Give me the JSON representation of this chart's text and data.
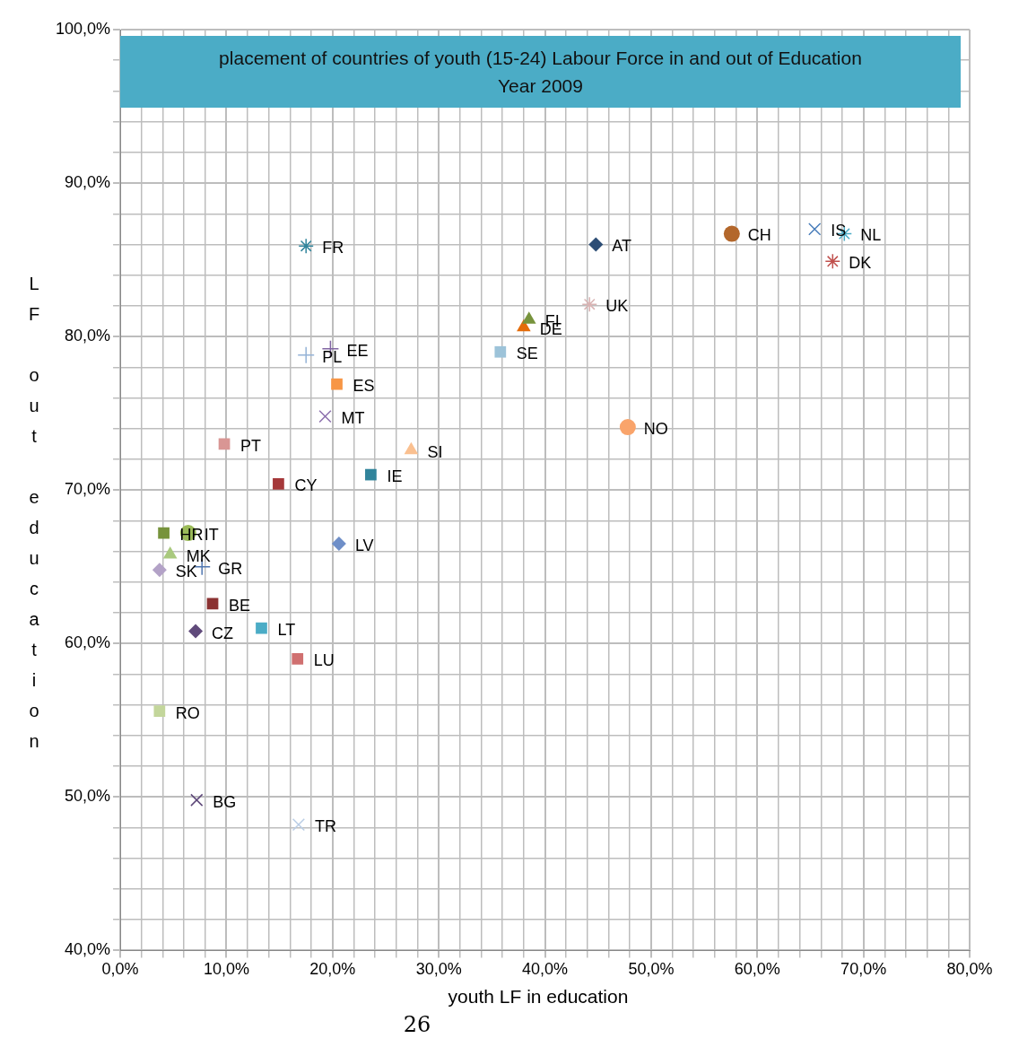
{
  "chart_data": {
    "type": "scatter",
    "title": "placement of  countries of youth (15-24) Labour Force in and out of Education\nYear 2009",
    "xlabel": "youth LF  in education",
    "ylabel": "LF out education",
    "annotations": [
      "26"
    ],
    "xlim": [
      0,
      80
    ],
    "ylim": [
      40,
      100
    ],
    "xticks": [
      {
        "value": 0,
        "label": "0,0%"
      },
      {
        "value": 2,
        "label": null
      },
      {
        "value": 4,
        "label": null
      },
      {
        "value": 6,
        "label": null
      },
      {
        "value": 8,
        "label": null
      },
      {
        "value": 10,
        "label": "10,0%"
      },
      {
        "value": 12,
        "label": null
      },
      {
        "value": 14,
        "label": null
      },
      {
        "value": 16,
        "label": null
      },
      {
        "value": 18,
        "label": null
      },
      {
        "value": 20,
        "label": "20,0%"
      },
      {
        "value": 22,
        "label": null
      },
      {
        "value": 24,
        "label": null
      },
      {
        "value": 26,
        "label": null
      },
      {
        "value": 28,
        "label": null
      },
      {
        "value": 30,
        "label": "30,0%"
      },
      {
        "value": 32,
        "label": null
      },
      {
        "value": 34,
        "label": null
      },
      {
        "value": 36,
        "label": null
      },
      {
        "value": 38,
        "label": null
      },
      {
        "value": 40,
        "label": "40,0%"
      },
      {
        "value": 42,
        "label": null
      },
      {
        "value": 44,
        "label": null
      },
      {
        "value": 46,
        "label": null
      },
      {
        "value": 48,
        "label": null
      },
      {
        "value": 50,
        "label": "50,0%"
      },
      {
        "value": 52,
        "label": null
      },
      {
        "value": 54,
        "label": null
      },
      {
        "value": 56,
        "label": null
      },
      {
        "value": 58,
        "label": null
      },
      {
        "value": 60,
        "label": "60,0%"
      },
      {
        "value": 62,
        "label": null
      },
      {
        "value": 64,
        "label": null
      },
      {
        "value": 66,
        "label": null
      },
      {
        "value": 68,
        "label": null
      },
      {
        "value": 70,
        "label": "70,0%"
      },
      {
        "value": 72,
        "label": null
      },
      {
        "value": 74,
        "label": null
      },
      {
        "value": 76,
        "label": null
      },
      {
        "value": 78,
        "label": null
      },
      {
        "value": 80,
        "label": "80,0%"
      }
    ],
    "yticks": [
      {
        "value": 40,
        "label": "40,0%"
      },
      {
        "value": 42,
        "label": null
      },
      {
        "value": 44,
        "label": null
      },
      {
        "value": 46,
        "label": null
      },
      {
        "value": 48,
        "label": null
      },
      {
        "value": 50,
        "label": "50,0%"
      },
      {
        "value": 52,
        "label": null
      },
      {
        "value": 54,
        "label": null
      },
      {
        "value": 56,
        "label": null
      },
      {
        "value": 58,
        "label": null
      },
      {
        "value": 60,
        "label": "60,0%"
      },
      {
        "value": 62,
        "label": null
      },
      {
        "value": 64,
        "label": null
      },
      {
        "value": 66,
        "label": null
      },
      {
        "value": 68,
        "label": null
      },
      {
        "value": 70,
        "label": "70,0%"
      },
      {
        "value": 72,
        "label": null
      },
      {
        "value": 74,
        "label": null
      },
      {
        "value": 76,
        "label": null
      },
      {
        "value": 78,
        "label": null
      },
      {
        "value": 80,
        "label": "80,0%"
      },
      {
        "value": 82,
        "label": null
      },
      {
        "value": 84,
        "label": null
      },
      {
        "value": 86,
        "label": null
      },
      {
        "value": 88,
        "label": null
      },
      {
        "value": 90,
        "label": "90,0%"
      },
      {
        "value": 92,
        "label": null
      },
      {
        "value": 94,
        "label": null
      },
      {
        "value": 96,
        "label": null
      },
      {
        "value": 98,
        "label": null
      },
      {
        "value": 100,
        "label": "100,0%"
      }
    ],
    "grid": true,
    "legend": false,
    "series": [
      {
        "name": "FR",
        "color": "#31859c",
        "x": [
          17.5
        ],
        "values": [
          85.9
        ]
      },
      {
        "name": "AT",
        "color": "#2c4d75",
        "marker": "diamond",
        "x": [
          44.8
        ],
        "values": [
          86.0
        ]
      },
      {
        "name": "CH",
        "color": "#b3672b",
        "marker": "circle",
        "x": [
          57.6
        ],
        "values": [
          86.7
        ]
      },
      {
        "name": "IS",
        "color": "#4a7ebb",
        "marker": "cross",
        "x": [
          65.4
        ],
        "values": [
          87.0
        ]
      },
      {
        "name": "NL",
        "color": "#4bacc6",
        "x": [
          68.2
        ],
        "values": [
          86.7
        ]
      },
      {
        "name": "DK",
        "color": "#c0504d",
        "x": [
          67.1
        ],
        "values": [
          84.9
        ]
      },
      {
        "name": "UK",
        "color": "#d9b3b3",
        "x": [
          44.2
        ],
        "values": [
          82.1
        ]
      },
      {
        "name": "FI",
        "color": "#77933c",
        "marker": "triangle",
        "x": [
          38.5
        ],
        "values": [
          81.1
        ]
      },
      {
        "name": "DE",
        "color": "#e46c0a",
        "marker": "triangle",
        "x": [
          38.0
        ],
        "values": [
          80.6
        ]
      },
      {
        "name": "SE",
        "color": "#9dc3d9",
        "marker": "square",
        "x": [
          35.8
        ],
        "values": [
          79.0
        ]
      },
      {
        "name": "PL",
        "color": "#95b3d7",
        "marker": "plus",
        "x": [
          17.5
        ],
        "values": [
          78.8
        ]
      },
      {
        "name": "EE",
        "color": "#8064a2",
        "marker": "plus",
        "x": [
          19.8
        ],
        "values": [
          79.2
        ]
      },
      {
        "name": "ES",
        "color": "#f79646",
        "marker": "square",
        "x": [
          20.4
        ],
        "values": [
          76.9
        ]
      },
      {
        "name": "MT",
        "color": "#8c6fad",
        "marker": "cross",
        "x": [
          19.3
        ],
        "values": [
          74.8
        ]
      },
      {
        "name": "PT",
        "color": "#d99694",
        "marker": "square",
        "x": [
          9.8
        ],
        "values": [
          73.0
        ]
      },
      {
        "name": "SI",
        "color": "#fac090",
        "marker": "triangle",
        "x": [
          27.4
        ],
        "values": [
          72.6
        ]
      },
      {
        "name": "IE",
        "color": "#31849b",
        "marker": "square",
        "x": [
          23.6
        ],
        "values": [
          71.0
        ]
      },
      {
        "name": "CY",
        "color": "#a5383a",
        "marker": "square",
        "x": [
          14.9
        ],
        "values": [
          70.4
        ]
      },
      {
        "name": "NO",
        "color": "#f9a46b",
        "marker": "circle",
        "x": [
          47.8
        ],
        "values": [
          74.1
        ]
      },
      {
        "name": "HR",
        "color": "#77933c",
        "marker": "square",
        "x": [
          4.1
        ],
        "values": [
          67.2
        ]
      },
      {
        "name": "IT",
        "color": "#9bbb59",
        "marker": "circle",
        "x": [
          6.4
        ],
        "values": [
          67.2
        ]
      },
      {
        "name": "LV",
        "color": "#6f8fc8",
        "marker": "diamond",
        "x": [
          20.6
        ],
        "values": [
          66.5
        ]
      },
      {
        "name": "MK",
        "color": "#a9c97e",
        "marker": "triangle",
        "x": [
          4.7
        ],
        "values": [
          65.8
        ]
      },
      {
        "name": "GR",
        "color": "#4f76b0",
        "marker": "plus",
        "x": [
          7.7
        ],
        "values": [
          65.0
        ]
      },
      {
        "name": "SK",
        "color": "#b3a2c7",
        "marker": "diamond",
        "x": [
          3.7
        ],
        "values": [
          64.8
        ]
      },
      {
        "name": "BE",
        "color": "#8b3232",
        "marker": "square",
        "x": [
          8.7
        ],
        "values": [
          62.6
        ]
      },
      {
        "name": "LT",
        "color": "#4bacc6",
        "marker": "square",
        "x": [
          13.3
        ],
        "values": [
          61.0
        ]
      },
      {
        "name": "CZ",
        "color": "#604a7b",
        "marker": "diamond",
        "x": [
          7.1
        ],
        "values": [
          60.8
        ]
      },
      {
        "name": "LU",
        "color": "#d07070",
        "marker": "square",
        "x": [
          16.7
        ],
        "values": [
          59.0
        ]
      },
      {
        "name": "RO",
        "color": "#c3d69b",
        "marker": "square",
        "x": [
          3.7
        ],
        "values": [
          55.6
        ]
      },
      {
        "name": "BG",
        "color": "#5f497a",
        "marker": "cross",
        "x": [
          7.2
        ],
        "values": [
          49.8
        ]
      },
      {
        "name": "TR",
        "color": "#b9cde5",
        "marker": "cross",
        "x": [
          16.8
        ],
        "values": [
          48.2
        ]
      }
    ]
  }
}
